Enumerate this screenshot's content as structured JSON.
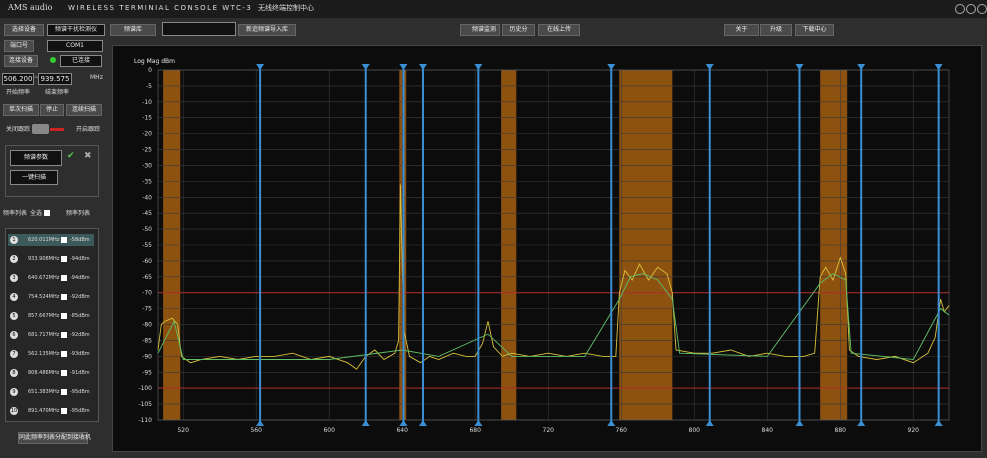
{
  "window": {
    "brand": "AMS audio",
    "title": "WIRELESS TERMINIAL CONSOLE  WTC-3",
    "subtitle": "无线终端控制中心"
  },
  "toolbar": {
    "spectrum_library": "频谱库",
    "import_library": "新追频谱导入库",
    "monitor": "频谱监测",
    "history": "历史分",
    "upload": "在线上传",
    "about": "关于",
    "upgrade": "升级",
    "download": "下载中心"
  },
  "left_panel": {
    "select_device": "选择设备",
    "device": "频谱干扰检测仪",
    "port_label": "端口号",
    "port": "COM1",
    "connect": "连接设备",
    "status": "已连接",
    "start_freq": "506.200",
    "tilde": "~",
    "end_freq": "939.575",
    "unit": "MHz",
    "start_label": "开始频率",
    "end_label": "结束频率",
    "single_scan": "单次扫描",
    "stop": "停止",
    "continuous_scan": "连续扫描",
    "track_off": "关闭跟踪",
    "track_on": "开启跟踪",
    "params": "频谱参数",
    "one_key": "一键扫描",
    "list_title": "频率列表",
    "select_all": "全选",
    "list_title2": "频率列表",
    "assign": "同此频率列表分配到接收机"
  },
  "chart_data": {
    "type": "line",
    "y_label": "Log Mag dBm",
    "xlim": [
      506.2,
      939.575
    ],
    "ylim": [
      -110,
      0
    ],
    "xticks": [
      520,
      560,
      600,
      640,
      680,
      720,
      760,
      800,
      840,
      880,
      920
    ],
    "yticks": [
      0,
      -5,
      -10,
      -15,
      -20,
      -25,
      -30,
      -35,
      -40,
      -45,
      -50,
      -55,
      -60,
      -65,
      -70,
      -75,
      -80,
      -85,
      -90,
      -95,
      -100,
      -105,
      -110
    ],
    "grid": true,
    "thresholds": [
      -70,
      -100
    ],
    "threshold_color": "#b0302a",
    "band_color": "#b86a12",
    "bands": [
      [
        509,
        518.4
      ],
      [
        638.4,
        642.2
      ],
      [
        694.2,
        702.5
      ],
      [
        758.9,
        788.0
      ],
      [
        869.0,
        883.8
      ]
    ],
    "marker_color": "#3b8fd4",
    "markers": [
      {
        "id": 1,
        "value": 620.011,
        "label": "620.011MHz",
        "level": "-58dBm"
      },
      {
        "id": 2,
        "value": 933.908,
        "label": "933.908MHz",
        "level": "-94dBm"
      },
      {
        "id": 3,
        "value": 640.672,
        "label": "640.672MHz",
        "level": "-94dBm"
      },
      {
        "id": 4,
        "value": 754.524,
        "label": "754.524MHz",
        "level": "-92dBm"
      },
      {
        "id": 5,
        "value": 857.667,
        "label": "857.667MHz",
        "level": "-85dBm"
      },
      {
        "id": 6,
        "value": 681.717,
        "label": "681.717MHz",
        "level": "-92dBm"
      },
      {
        "id": 7,
        "value": 562.135,
        "label": "562.135MHz",
        "level": "-93dBm"
      },
      {
        "id": 8,
        "value": 808.486,
        "label": "808.486MHz",
        "level": "-91dBm"
      },
      {
        "id": 9,
        "value": 651.383,
        "label": "651.383MHz",
        "level": "-95dBm"
      },
      {
        "id": 10,
        "value": 891.47,
        "label": "891.470MHz",
        "level": "-95dBm"
      }
    ],
    "series": [
      {
        "color": "#d8c23a",
        "x": [
          506.2,
          508,
          510,
          514,
          517,
          519,
          524,
          530,
          540,
          550,
          560,
          570,
          580,
          590,
          600,
          610,
          615,
          620,
          625,
          630,
          636,
          638,
          639,
          640,
          641,
          644,
          650,
          655,
          660,
          668,
          675,
          680,
          684,
          687,
          690,
          695,
          700,
          710,
          720,
          730,
          740,
          750,
          757,
          759,
          762,
          766,
          770,
          775,
          780,
          785,
          788,
          790,
          800,
          810,
          820,
          830,
          840,
          850,
          860,
          866,
          869,
          872,
          876,
          880,
          883,
          885,
          890,
          900,
          910,
          920,
          928,
          932,
          935,
          937,
          939.575
        ],
        "values": [
          -88,
          -80,
          -79,
          -78,
          -80,
          -90,
          -92,
          -91,
          -90,
          -91,
          -90,
          -90,
          -89,
          -91,
          -90,
          -92,
          -94,
          -90,
          -88,
          -91,
          -89,
          -85,
          -36,
          -60,
          -82,
          -90,
          -92,
          -90,
          -91,
          -89,
          -90,
          -90,
          -86,
          -79,
          -87,
          -90,
          -89,
          -90,
          -89,
          -90,
          -89,
          -90,
          -90,
          -70,
          -63,
          -66,
          -61,
          -66,
          -62,
          -64,
          -70,
          -88,
          -89,
          -89,
          -88,
          -90,
          -89,
          -90,
          -90,
          -89,
          -65,
          -62,
          -66,
          -59,
          -64,
          -88,
          -90,
          -91,
          -90,
          -92,
          -89,
          -84,
          -72,
          -76,
          -74
        ]
      },
      {
        "color": "#5fbf6a",
        "x": [
          506.2,
          515,
          520,
          560,
          600,
          640,
          660,
          687,
          700,
          740,
          759,
          765,
          772,
          780,
          788,
          792,
          840,
          869,
          876,
          883,
          886,
          920,
          935,
          939.575
        ],
        "values": [
          -89,
          -79,
          -91,
          -91,
          -91,
          -88,
          -90,
          -83,
          -90,
          -90,
          -72,
          -65,
          -64,
          -66,
          -72,
          -89,
          -90,
          -67,
          -64,
          -66,
          -89,
          -91,
          -75,
          -77
        ]
      }
    ]
  }
}
